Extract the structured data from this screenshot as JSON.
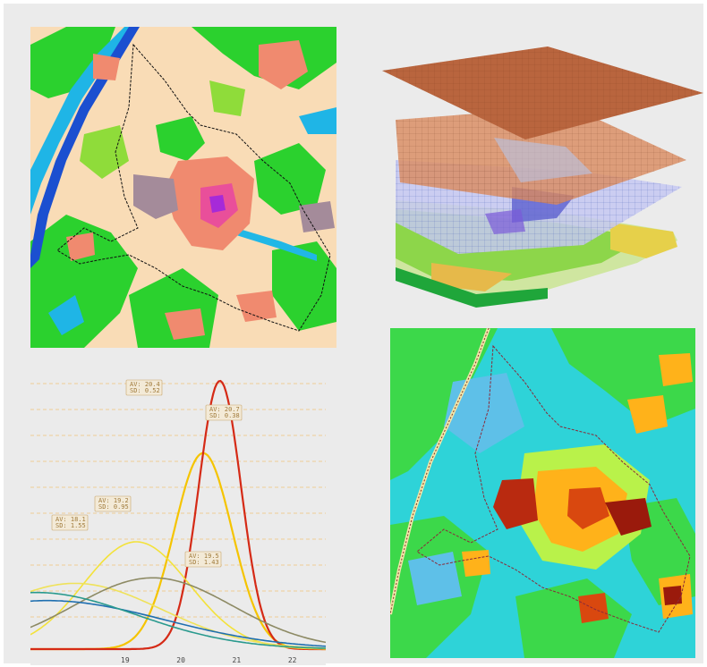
{
  "panels": {
    "land_cover_map": {
      "icon": "land-cover-map-image"
    },
    "layer_stack": {
      "icon": "stacked-3d-layers-image"
    },
    "distribution_plot": {
      "icon": "distribution-curves-plot",
      "annotations": [
        {
          "av": "AV: 20.4",
          "sd": "SD: 0.52"
        },
        {
          "av": "AV: 20.7",
          "sd": "SD: 0.38"
        },
        {
          "av": "AV: 19.2",
          "sd": "SD: 0.95"
        },
        {
          "av": "AV: 18.1",
          "sd": "SD: 1.55"
        },
        {
          "av": "AV: 19.5",
          "sd": "SD: 1.43"
        }
      ]
    },
    "heat_map": {
      "icon": "heat-map-image"
    }
  },
  "chart_data": {
    "type": "line",
    "x_ticks": [
      "19",
      "20",
      "21",
      "22"
    ],
    "xlim": [
      17.3,
      22.6
    ],
    "series": [
      {
        "color": "#f5c400",
        "mean": 20.4,
        "sd": 0.52
      },
      {
        "color": "#d52a16",
        "mean": 20.7,
        "sd": 0.38
      },
      {
        "color": "#f3e23a",
        "mean": 19.2,
        "sd": 0.95
      },
      {
        "color": "#efe25a",
        "mean": 18.1,
        "sd": 1.55
      },
      {
        "color": "#8d8a64",
        "mean": 19.5,
        "sd": 1.43
      },
      {
        "color": "#1f6fb0",
        "mean": 17.6,
        "sd": 2.1
      },
      {
        "color": "#2a9a8e",
        "mean": 17.4,
        "sd": 1.8
      }
    ],
    "grid": true,
    "colors": {
      "grid": "#f1c27a"
    }
  }
}
